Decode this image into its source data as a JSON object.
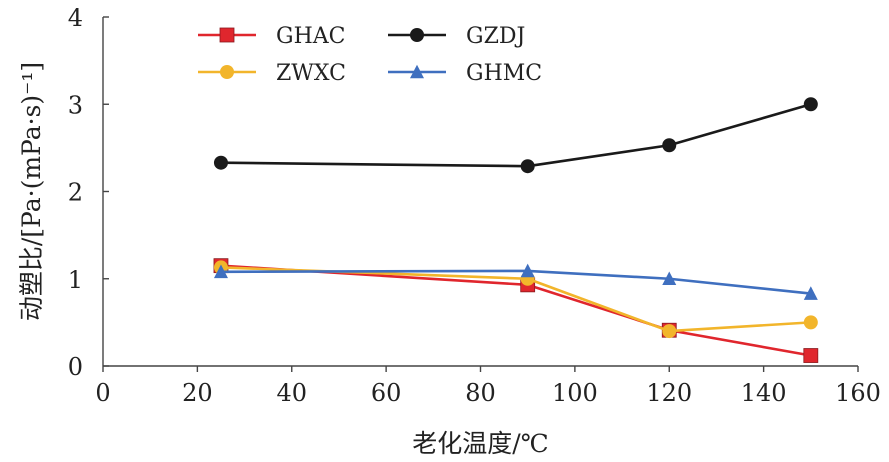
{
  "chart_data": {
    "type": "line",
    "xlabel": "老化温度/℃",
    "ylabel": "动塑比/[Pa·(mPa·s)⁻¹]",
    "xlim": [
      0,
      160
    ],
    "ylim": [
      0,
      4
    ],
    "xticks": [
      0,
      20,
      40,
      60,
      80,
      100,
      120,
      140,
      160
    ],
    "yticks": [
      0,
      1,
      2,
      3,
      4
    ],
    "x": [
      25,
      90,
      120,
      150
    ],
    "grid": false,
    "legend_position": "top-left",
    "series": [
      {
        "name": "GHAC",
        "values": [
          1.15,
          0.93,
          0.41,
          0.12
        ],
        "color": "#e0262d",
        "marker": "square"
      },
      {
        "name": "GZDJ",
        "values": [
          2.33,
          2.29,
          2.53,
          3.0
        ],
        "color": "#1a1a1a",
        "marker": "circle"
      },
      {
        "name": "ZWXC",
        "values": [
          1.13,
          1.0,
          0.4,
          0.5
        ],
        "color": "#f2b52b",
        "marker": "circle"
      },
      {
        "name": "GHMC",
        "values": [
          1.08,
          1.09,
          1.0,
          0.83
        ],
        "color": "#3f6fbf",
        "marker": "triangle"
      }
    ]
  }
}
